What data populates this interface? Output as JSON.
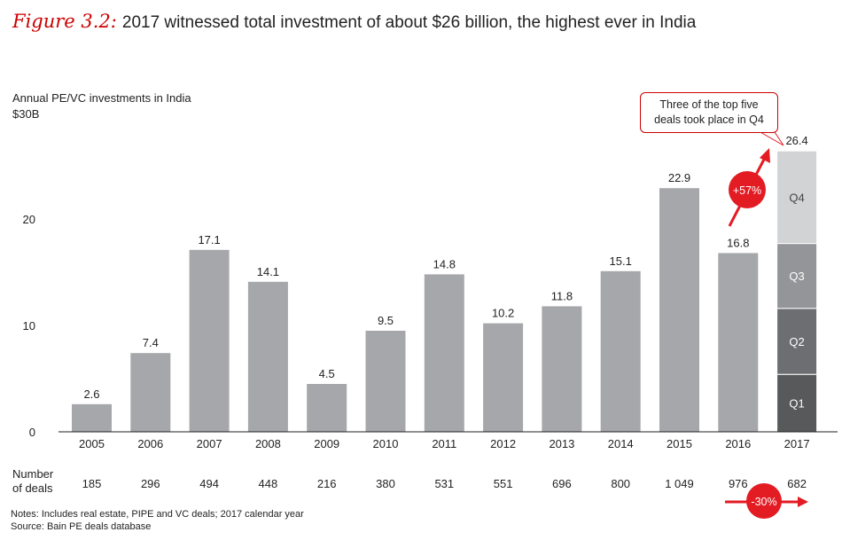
{
  "figure": {
    "label": "Figure 3.2:",
    "title": "2017 witnessed total investment of about $26 billion, the highest ever in India"
  },
  "colors": {
    "bar": "#a6a7aa",
    "q1": "#58595b",
    "q2": "#6d6e71",
    "q3": "#939598",
    "q4": "#d1d3d4",
    "accent": "#e31b23"
  },
  "chart_data": {
    "type": "bar",
    "ylabel": "Annual PE/VC investments in India",
    "ytop_label": "$30B",
    "ylim": [
      0,
      30
    ],
    "yticks": [
      "0",
      "10",
      "20"
    ],
    "categories": [
      "2005",
      "2006",
      "2007",
      "2008",
      "2009",
      "2010",
      "2011",
      "2012",
      "2013",
      "2014",
      "2015",
      "2016",
      "2017"
    ],
    "values": [
      2.6,
      7.4,
      17.1,
      14.1,
      4.5,
      9.5,
      14.8,
      10.2,
      11.8,
      15.1,
      22.9,
      16.8,
      26.4
    ],
    "value_labels": [
      "2.6",
      "7.4",
      "17.1",
      "14.1",
      "4.5",
      "9.5",
      "14.8",
      "10.2",
      "11.8",
      "15.1",
      "22.9",
      "16.8",
      "26.4"
    ],
    "quarter_breakdown_2017": [
      {
        "name": "Q1",
        "value": 5.4
      },
      {
        "name": "Q2",
        "value": 6.2
      },
      {
        "name": "Q3",
        "value": 6.1
      },
      {
        "name": "Q4",
        "value": 8.7
      }
    ],
    "deals_label": [
      "Number",
      "of deals"
    ],
    "deals": [
      "185",
      "296",
      "494",
      "448",
      "216",
      "380",
      "531",
      "551",
      "696",
      "800",
      "1 049",
      "976",
      "682"
    ],
    "annotations": {
      "growth": "+57%",
      "deals_change": "-30%",
      "callout": [
        "Three of the top five",
        "deals took place in Q4"
      ]
    }
  },
  "notes": [
    "Notes: Includes real estate, PIPE and VC deals; 2017 calendar year",
    "Source: Bain PE deals database"
  ]
}
